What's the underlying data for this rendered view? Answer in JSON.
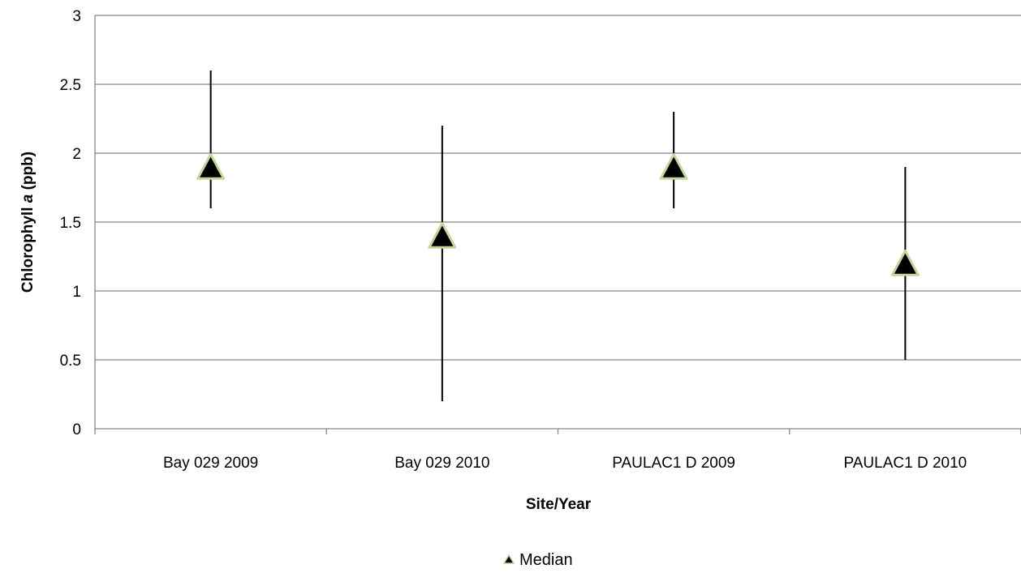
{
  "chart_data": {
    "type": "scatter",
    "categories": [
      "Bay 029 2009",
      "Bay 029 2010",
      "PAULAC1 D 2009",
      "PAULAC1 D 2010"
    ],
    "series": [
      {
        "name": "Median",
        "values": [
          1.9,
          1.4,
          1.9,
          1.2
        ],
        "range_low": [
          1.6,
          0.2,
          1.6,
          0.5
        ],
        "range_high": [
          2.6,
          2.2,
          2.3,
          1.9
        ],
        "marker": "triangle"
      }
    ],
    "xlabel": "Site/Year",
    "ylabel_prefix": "Chlorophyll ",
    "ylabel_italic": "a",
    "ylabel_suffix": " (ppb)",
    "ylim": [
      0,
      3
    ],
    "yticks": [
      "0",
      "0.5",
      "1",
      "1.5",
      "2",
      "2.5",
      "3"
    ],
    "grid": true,
    "legend": "bottom-center"
  },
  "colors": {
    "marker_fill": "#000000",
    "marker_outline": "#c3d69b",
    "gridline": "#888888",
    "errorbar": "#000000"
  }
}
